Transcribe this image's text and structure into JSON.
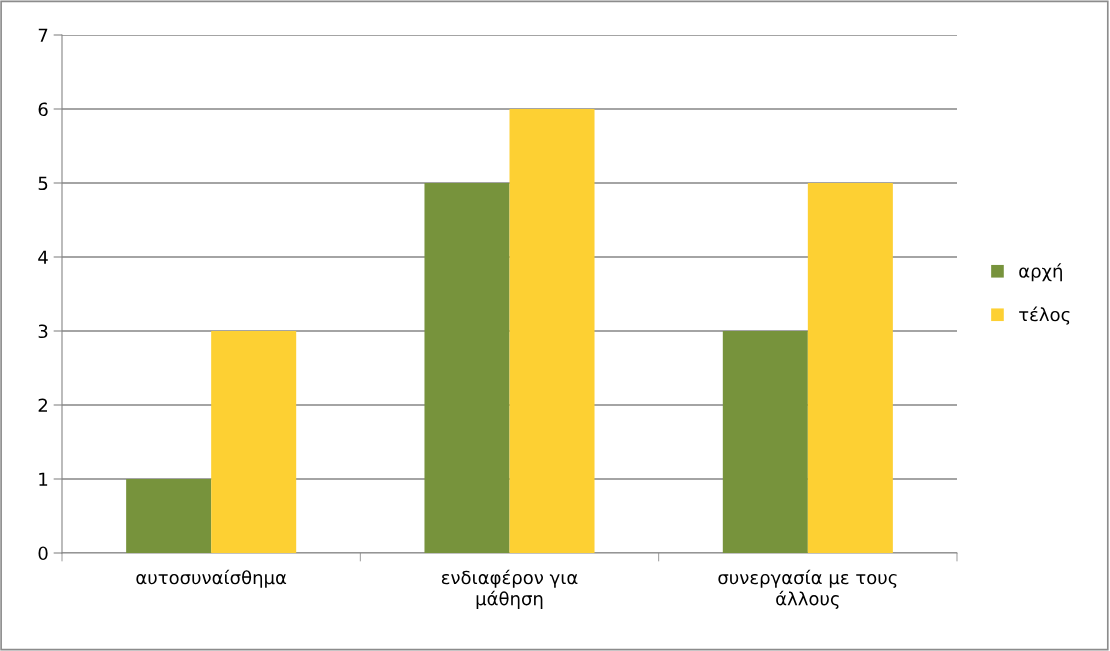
{
  "chart_data": {
    "type": "bar",
    "categories": [
      "αυτοσυναίσθημα",
      "ενδιαφέρον για μάθηση",
      "συνεργασία με τους άλλους"
    ],
    "series": [
      {
        "name": "αρχή",
        "color": "#77933c",
        "values": [
          1,
          5,
          3
        ]
      },
      {
        "name": "τέλος",
        "color": "#fdd033",
        "values": [
          3,
          6,
          5
        ]
      }
    ],
    "ylim": [
      0,
      7
    ],
    "yticks": [
      0,
      1,
      2,
      3,
      4,
      5,
      6,
      7
    ],
    "grid": "y",
    "legend": "right"
  }
}
